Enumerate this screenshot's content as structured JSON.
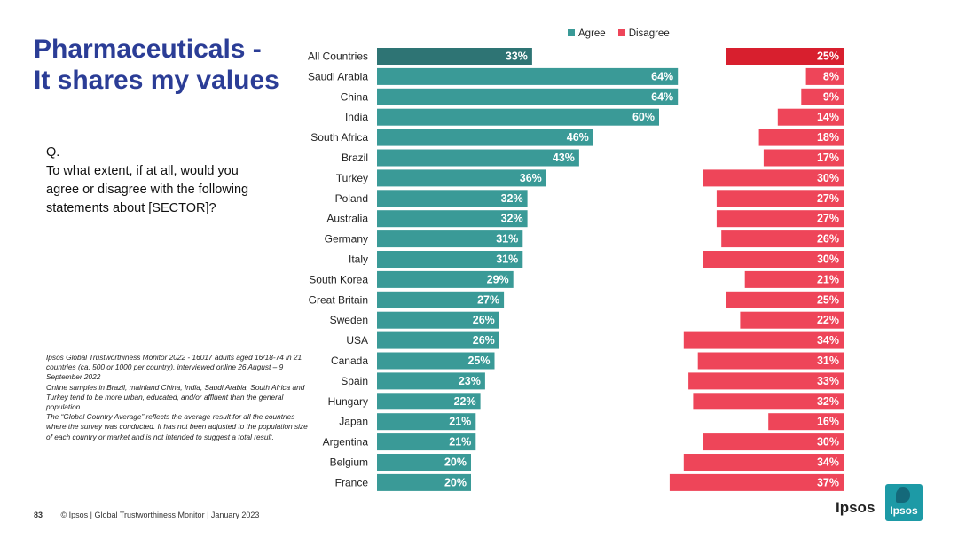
{
  "title_line1": "Pharmaceuticals -",
  "title_line2": "It shares my values",
  "question": {
    "label": "Q.",
    "text": "To what extent, if at all, would you agree or disagree with the following statements about [SECTOR]?"
  },
  "notes": [
    "Ipsos Global Trustworthiness Monitor 2022 - 16017 adults aged 16/18-74 in 21 countries (ca. 500 or 1000 per country), interviewed online 26 August – 9 September 2022",
    "Online samples in Brazil, mainland China, India, Saudi Arabia, South Africa and Turkey tend to be more urban, educated, and/or affluent than the general population.",
    "The “Global Country Average” reflects the average result for all the countries where the survey was conducted. It has not been adjusted to the population size of each country or market and is not intended to suggest a total result."
  ],
  "footer": {
    "page_number": "83",
    "text": "© Ipsos | Global Trustworthiness Monitor | January 2023"
  },
  "brand": {
    "wordmark": "Ipsos",
    "logo_text": "Ipsos"
  },
  "colors": {
    "title": "#2b3d96",
    "agree": "#3a9a97",
    "agree_highlight": "#2e7474",
    "disagree": "#ee4559",
    "disagree_highlight": "#d81f2e"
  },
  "chart_data": {
    "type": "bar",
    "orientation": "horizontal",
    "title": "Pharmaceuticals - It shares my values",
    "categories": [
      "All Countries",
      "Saudi Arabia",
      "China",
      "India",
      "South Africa",
      "Brazil",
      "Turkey",
      "Poland",
      "Australia",
      "Germany",
      "Italy",
      "South Korea",
      "Great Britain",
      "Sweden",
      "USA",
      "Canada",
      "Spain",
      "Hungary",
      "Japan",
      "Argentina",
      "Belgium",
      "France"
    ],
    "series": [
      {
        "name": "Agree",
        "values": [
          33,
          64,
          64,
          60,
          46,
          43,
          36,
          32,
          32,
          31,
          31,
          29,
          27,
          26,
          26,
          25,
          23,
          22,
          21,
          21,
          20,
          20
        ]
      },
      {
        "name": "Disagree",
        "values": [
          25,
          8,
          9,
          14,
          18,
          17,
          30,
          27,
          27,
          26,
          30,
          21,
          25,
          22,
          34,
          31,
          33,
          32,
          16,
          30,
          34,
          37
        ]
      }
    ],
    "value_suffix": "%",
    "legend": [
      "Agree",
      "Disagree"
    ],
    "legend_position": "top",
    "highlight_category": "All Countries",
    "xlim": [
      0,
      100
    ]
  }
}
